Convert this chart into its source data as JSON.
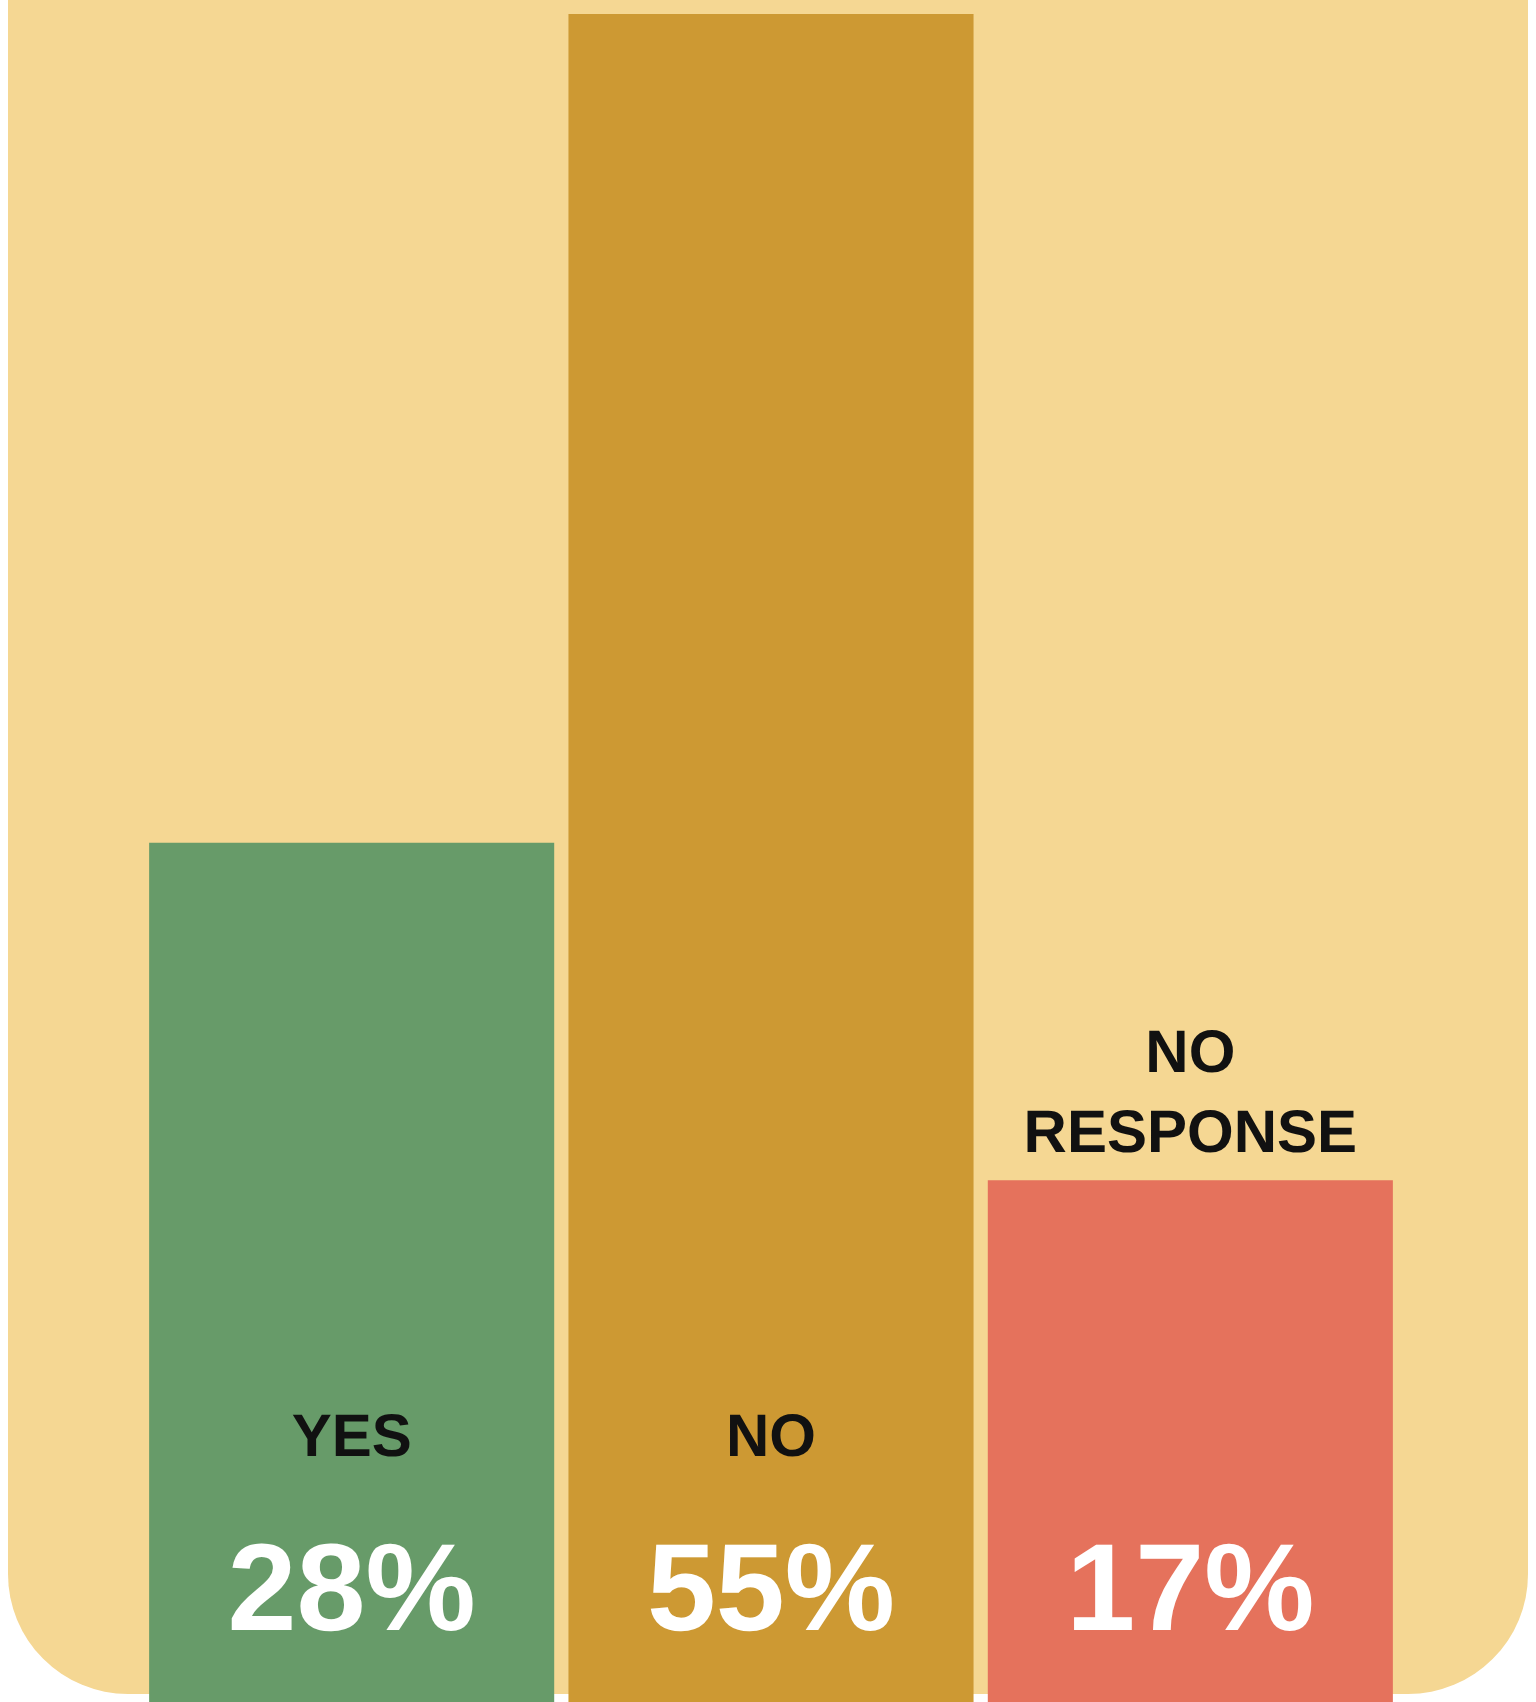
{
  "chart_data": {
    "type": "bar",
    "categories": [
      "YES",
      "NO",
      "NO RESPONSE"
    ],
    "values": [
      28,
      55,
      17
    ],
    "colors": [
      "#679b69",
      "#cd9933",
      "#e5725c"
    ],
    "value_labels": [
      "28%",
      "55%",
      "17%"
    ]
  }
}
